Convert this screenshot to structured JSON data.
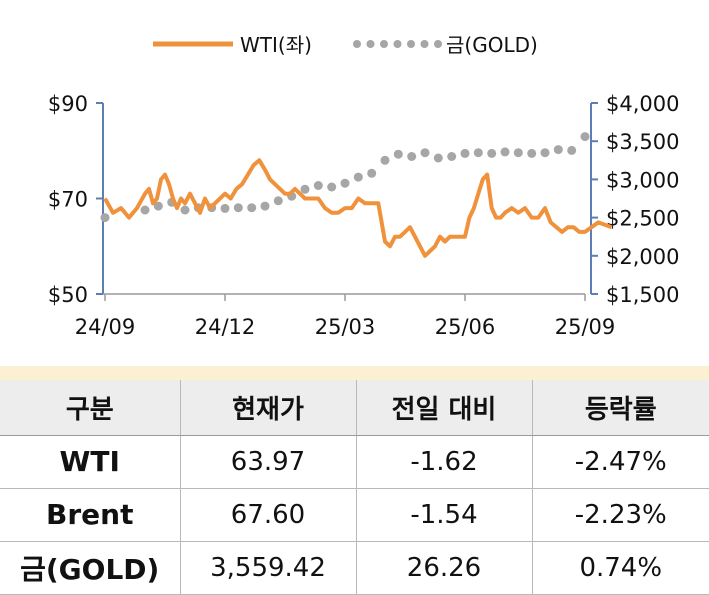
{
  "chart_data": {
    "type": "line",
    "legend": [
      {
        "name": "WTI(좌)",
        "style": "line",
        "color": "#f0913c"
      },
      {
        "name": "금(GOLD)",
        "style": "dots",
        "color": "#a6a6a6"
      }
    ],
    "legend_placement": "top-center",
    "x_ticks": [
      "24/09",
      "24/12",
      "25/03",
      "25/06",
      "25/09"
    ],
    "y_left": {
      "ticks": [
        "$50",
        "$70",
        "$90"
      ],
      "min": 50,
      "max": 90
    },
    "y_right": {
      "ticks": [
        "$1,500",
        "$2,000",
        "$2,500",
        "$3,000",
        "$3,500",
        "$4,000"
      ],
      "min": 1500,
      "max": 4000
    },
    "grid": false,
    "series": [
      {
        "name": "WTI(좌)",
        "axis": "left",
        "color": "#f0913c",
        "x": [
          "24/09",
          "24/09",
          "24/09",
          "24/09",
          "24/09",
          "24/10",
          "24/10",
          "24/10",
          "24/10",
          "24/10",
          "24/10",
          "24/10",
          "24/10",
          "24/10",
          "24/10",
          "24/11",
          "24/11",
          "24/11",
          "24/11",
          "24/11",
          "24/11",
          "24/11",
          "24/11",
          "24/12",
          "24/12",
          "24/12",
          "24/12",
          "24/12",
          "24/12",
          "24/12",
          "25/01",
          "25/01",
          "25/01",
          "25/01",
          "25/01",
          "25/01",
          "25/01",
          "25/01",
          "25/02",
          "25/02",
          "25/02",
          "25/02",
          "25/02",
          "25/02",
          "25/03",
          "25/03",
          "25/03",
          "25/03",
          "25/03",
          "25/03",
          "25/04",
          "25/04",
          "25/04",
          "25/04",
          "25/04",
          "25/04",
          "25/04",
          "25/04",
          "25/05",
          "25/05",
          "25/05",
          "25/05",
          "25/05",
          "25/05",
          "25/05",
          "25/05",
          "25/06",
          "25/06",
          "25/06",
          "25/06",
          "25/06",
          "25/06",
          "25/06",
          "25/06",
          "25/06",
          "25/07",
          "25/07",
          "25/07",
          "25/07",
          "25/07",
          "25/07",
          "25/08",
          "25/08",
          "25/08",
          "25/08",
          "25/08",
          "25/08",
          "25/08",
          "25/09",
          "25/09",
          "25/09"
        ],
        "values": [
          70,
          67,
          68,
          66,
          68,
          71,
          72,
          69,
          70,
          74,
          75,
          73,
          70,
          68,
          70,
          69,
          71,
          69,
          67,
          70,
          68,
          69,
          70,
          71,
          70,
          72,
          73,
          75,
          77,
          78,
          76,
          74,
          73,
          72,
          71,
          71,
          72,
          71,
          70,
          70,
          70,
          68,
          67,
          67,
          68,
          68,
          70,
          69,
          69,
          69,
          61,
          60,
          62,
          62,
          63,
          64,
          62,
          60,
          58,
          59,
          60,
          62,
          61,
          62,
          62,
          62,
          62,
          66,
          68,
          71,
          74,
          75,
          68,
          66,
          66,
          67,
          68,
          67,
          68,
          66,
          66,
          68,
          65,
          64,
          63,
          64,
          64,
          63,
          63,
          65,
          64
        ]
      },
      {
        "name": "금(GOLD)",
        "axis": "right",
        "color": "#a6a6a6",
        "x": [
          "24/09",
          "24/10",
          "24/10",
          "24/10",
          "24/11",
          "24/11",
          "24/11",
          "24/12",
          "24/12",
          "24/12",
          "25/01",
          "25/01",
          "25/01",
          "25/02",
          "25/02",
          "25/02",
          "25/03",
          "25/03",
          "25/03",
          "25/04",
          "25/04",
          "25/04",
          "25/05",
          "25/05",
          "25/05",
          "25/06",
          "25/06",
          "25/06",
          "25/07",
          "25/07",
          "25/07",
          "25/08",
          "25/08",
          "25/08",
          "25/09"
        ],
        "values": [
          2500,
          2600,
          2650,
          2700,
          2600,
          2630,
          2630,
          2620,
          2630,
          2630,
          2650,
          2720,
          2780,
          2870,
          2920,
          2900,
          2950,
          3030,
          3080,
          3250,
          3330,
          3300,
          3350,
          3280,
          3300,
          3340,
          3350,
          3340,
          3360,
          3350,
          3340,
          3350,
          3390,
          3380,
          3560
        ]
      }
    ]
  },
  "table": {
    "headers": [
      "구분",
      "현재가",
      "전일 대비",
      "등락률"
    ],
    "rows": [
      {
        "name": "WTI",
        "price": "63.97",
        "change": "-1.62",
        "rate": "-2.47%"
      },
      {
        "name": "Brent",
        "price": "67.60",
        "change": "-1.54",
        "rate": "-2.23%"
      },
      {
        "name": "금(GOLD)",
        "price": "3,559.42",
        "change": "26.26",
        "rate": "0.74%"
      }
    ]
  }
}
